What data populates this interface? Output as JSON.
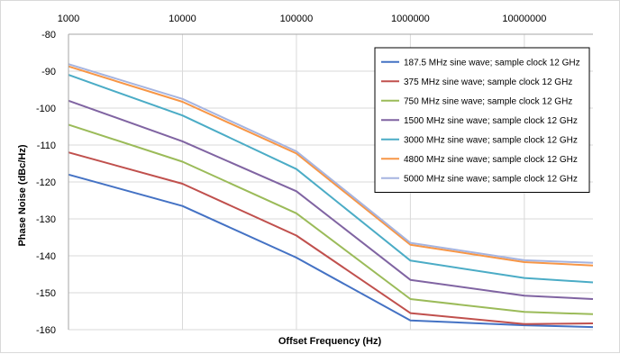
{
  "chart_data": {
    "type": "line",
    "title": "",
    "xlabel": "Offset Frequency (Hz)",
    "ylabel": "Phase Noise (dBc/Hz)",
    "x_scale": "log",
    "x_ticks": [
      1000,
      10000,
      100000,
      1000000,
      10000000
    ],
    "x_tick_labels": [
      "1000",
      "10000",
      "100000",
      "1000000",
      "10000000"
    ],
    "xlim": [
      1000,
      40000000
    ],
    "ylim": [
      -160,
      -80
    ],
    "y_ticks": [
      -80,
      -90,
      -100,
      -110,
      -120,
      -130,
      -140,
      -150,
      -160
    ],
    "y_tick_labels": [
      "-80",
      "-90",
      "-100",
      "-110",
      "-120",
      "-130",
      "-140",
      "-150",
      "-160"
    ],
    "x_axis_position": "top",
    "grid": true,
    "legend_position": "top-right",
    "x": [
      1000,
      10000,
      100000,
      1000000,
      10000000,
      40000000
    ],
    "series": [
      {
        "name": "187.5 MHz sine wave; sample clock 12 GHz",
        "color": "#4472c4",
        "values": [
          -118,
          -126.5,
          -140.5,
          -157.5,
          -158.8,
          -159.3
        ]
      },
      {
        "name": "375 MHz sine wave; sample clock 12 GHz",
        "color": "#c0504d",
        "values": [
          -112,
          -120.5,
          -134.5,
          -155.5,
          -158.5,
          -158.3
        ]
      },
      {
        "name": "750 MHz sine wave; sample clock 12 GHz",
        "color": "#9bbb59",
        "values": [
          -104.5,
          -114.5,
          -128.5,
          -151.7,
          -155.2,
          -155.8
        ]
      },
      {
        "name": "1500 MHz sine wave; sample clock 12 GHz",
        "color": "#8064a2",
        "values": [
          -98,
          -109,
          -122.5,
          -146.5,
          -150.8,
          -151.7
        ]
      },
      {
        "name": "3000 MHz sine wave; sample clock 12 GHz",
        "color": "#4bacc6",
        "values": [
          -91,
          -102,
          -116.5,
          -141.3,
          -146,
          -147.2
        ]
      },
      {
        "name": "4800 MHz sine wave; sample clock 12 GHz",
        "color": "#f79646",
        "values": [
          -88.7,
          -98.3,
          -112.3,
          -137,
          -141.7,
          -142.6
        ]
      },
      {
        "name": "5000 MHz sine wave; sample clock 12 GHz",
        "color": "#a5b4e0",
        "values": [
          -88.1,
          -97.5,
          -111.7,
          -136.5,
          -141.2,
          -141.9
        ]
      }
    ]
  }
}
